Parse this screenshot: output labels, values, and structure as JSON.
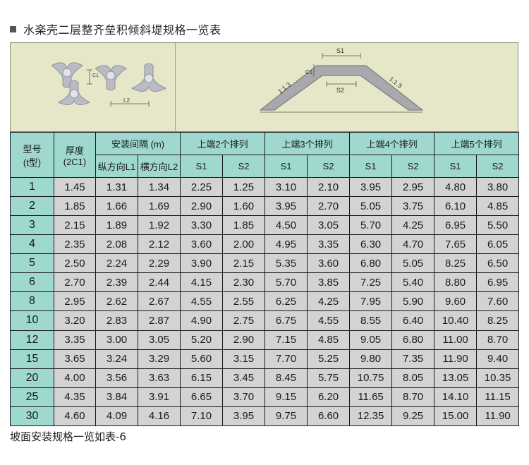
{
  "title": "水楽壳二层整齐垒积倾斜堤规格一览表",
  "figure": {
    "label_right_slope_left": "1:1.3",
    "label_right_slope_right": "1:1.3",
    "label_s1": "S1",
    "label_s2": "S2",
    "label_c1": "C1",
    "label_l2": "L2"
  },
  "table": {
    "header": {
      "type": "型号",
      "type_sub": "(t型)",
      "thickness": "厚度",
      "thickness_sub": "(2C1)",
      "spacing": "安装间隔 (m)",
      "l1": "纵方向L1",
      "l2": "横方向L2",
      "top2": "上端2个排列",
      "top3": "上端3个排列",
      "top4": "上端4个排列",
      "top5": "上端5个排列",
      "s1": "S1",
      "s2": "S2"
    },
    "rows": [
      [
        "1",
        "1.45",
        "1.31",
        "1.34",
        "2.25",
        "1.25",
        "3.10",
        "2.10",
        "3.95",
        "2.95",
        "4.80",
        "3.80"
      ],
      [
        "2",
        "1.85",
        "1.66",
        "1.69",
        "2.90",
        "1.60",
        "3.95",
        "2.70",
        "5.05",
        "3.75",
        "6.10",
        "4.85"
      ],
      [
        "3",
        "2.15",
        "1.89",
        "1.92",
        "3.30",
        "1.85",
        "4.50",
        "3.05",
        "5.70",
        "4.25",
        "6.95",
        "5.50"
      ],
      [
        "4",
        "2.35",
        "2.08",
        "2.12",
        "3.60",
        "2.00",
        "4.95",
        "3.35",
        "6.30",
        "4.70",
        "7.65",
        "6.05"
      ],
      [
        "5",
        "2.50",
        "2.24",
        "2.29",
        "3.90",
        "2.15",
        "5.35",
        "3.60",
        "6.80",
        "5.05",
        "8.25",
        "6.50"
      ],
      [
        "6",
        "2.70",
        "2.39",
        "2.44",
        "4.15",
        "2.30",
        "5.70",
        "3.85",
        "7.25",
        "5.40",
        "8.80",
        "6.95"
      ],
      [
        "8",
        "2.95",
        "2.62",
        "2.67",
        "4.55",
        "2.55",
        "6.25",
        "4.25",
        "7.95",
        "5.90",
        "9.60",
        "7.60"
      ],
      [
        "10",
        "3.20",
        "2.83",
        "2.87",
        "4.90",
        "2.75",
        "6.75",
        "4.55",
        "8.55",
        "6.40",
        "10.40",
        "8.25"
      ],
      [
        "12",
        "3.35",
        "3.00",
        "3.05",
        "5.20",
        "2.90",
        "7.15",
        "4.85",
        "9.05",
        "6.80",
        "11.00",
        "8.70"
      ],
      [
        "15",
        "3.65",
        "3.24",
        "3.29",
        "5.60",
        "3.15",
        "7.70",
        "5.25",
        "9.80",
        "7.35",
        "11.90",
        "9.40"
      ],
      [
        "20",
        "4.00",
        "3.56",
        "3.63",
        "6.15",
        "3.45",
        "8.45",
        "5.75",
        "10.75",
        "8.05",
        "13.05",
        "10.35"
      ],
      [
        "25",
        "4.35",
        "3.84",
        "3.91",
        "6.65",
        "3.70",
        "9.15",
        "6.20",
        "11.65",
        "8.70",
        "14.10",
        "11.15"
      ],
      [
        "30",
        "4.60",
        "4.09",
        "4.16",
        "7.10",
        "3.95",
        "9.75",
        "6.60",
        "12.35",
        "9.25",
        "15.00",
        "11.90"
      ]
    ]
  },
  "footer": "坡面安装规格一览如表-6",
  "colors": {
    "header_bg": "#9ed8cf",
    "cell_bg": "#d3d3d3",
    "figure_bg": "#e6e6c8"
  }
}
